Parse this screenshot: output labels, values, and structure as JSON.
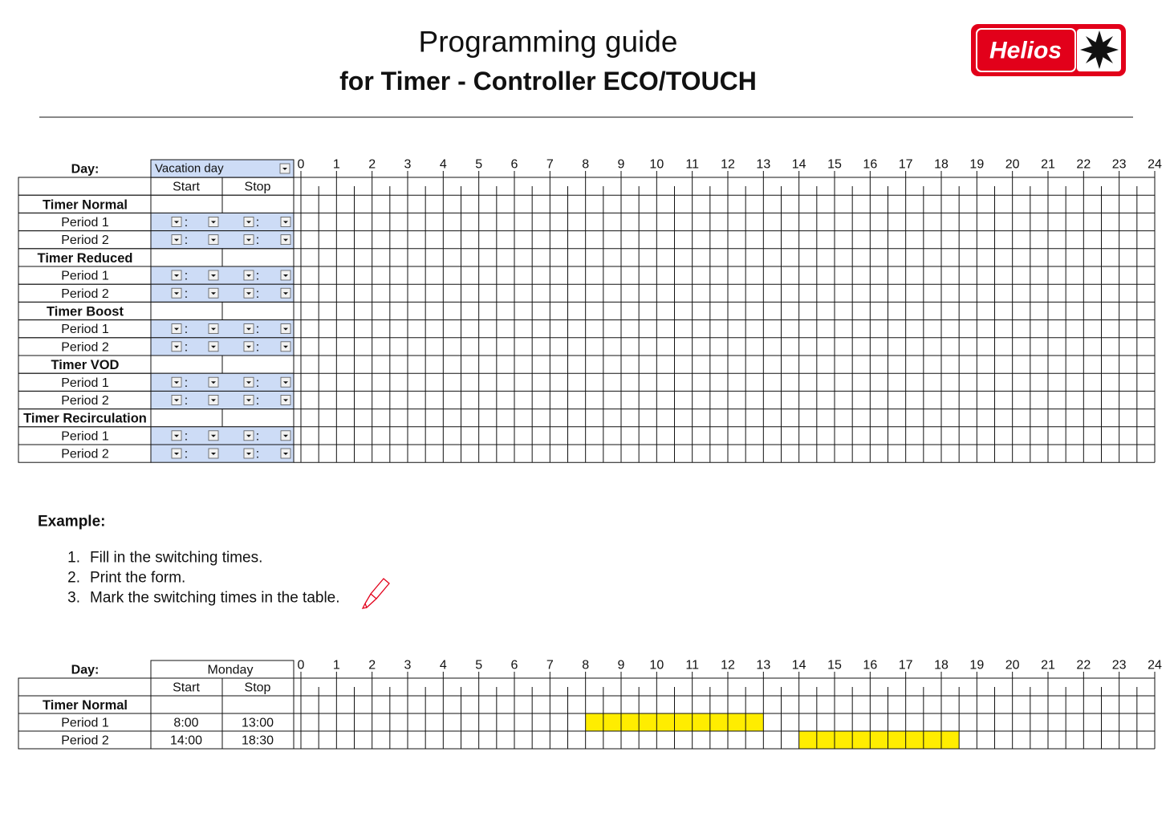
{
  "header": {
    "title": "Programming guide",
    "subtitle": "for Timer - Controller ECO/TOUCH",
    "logo": "Helios"
  },
  "form": {
    "day_label": "Day:",
    "day_value": "Vacation day",
    "columns": [
      "Start",
      "Stop"
    ],
    "separator": ":",
    "hours": [
      0,
      1,
      2,
      3,
      4,
      5,
      6,
      7,
      8,
      9,
      10,
      11,
      12,
      13,
      14,
      15,
      16,
      17,
      18,
      19,
      20,
      21,
      22,
      23,
      24
    ],
    "groups": [
      {
        "name": "Timer Normal",
        "periods": [
          "Period 1",
          "Period 2"
        ]
      },
      {
        "name": "Timer Reduced",
        "periods": [
          "Period 1",
          "Period 2"
        ]
      },
      {
        "name": "Timer Boost",
        "periods": [
          "Period 1",
          "Period 2"
        ]
      },
      {
        "name": "Timer VOD",
        "periods": [
          "Period 1",
          "Period 2"
        ]
      },
      {
        "name": "Timer Recirculation",
        "periods": [
          "Period 1",
          "Period 2"
        ]
      }
    ]
  },
  "example": {
    "heading": "Example:",
    "steps": [
      {
        "number": "1.",
        "text": "Fill in the switching times."
      },
      {
        "number": "2.",
        "text": "Print the form."
      },
      {
        "number": "3.",
        "text": "Mark the switching times in the table."
      }
    ]
  },
  "example_table": {
    "day_label": "Day:",
    "day_value": "Monday",
    "columns": [
      "Start",
      "Stop"
    ],
    "hours": [
      0,
      1,
      2,
      3,
      4,
      5,
      6,
      7,
      8,
      9,
      10,
      11,
      12,
      13,
      14,
      15,
      16,
      17,
      18,
      19,
      20,
      21,
      22,
      23,
      24
    ],
    "groups": [
      {
        "name": "Timer Normal",
        "periods": [
          {
            "name": "Period 1",
            "start": {
              "value": 8,
              "label": "8:00"
            },
            "stop": {
              "value": 13,
              "label": "13:00"
            }
          },
          {
            "name": "Period 2",
            "start": {
              "value": 14,
              "label": "14:00"
            },
            "stop": {
              "value": 18.5,
              "label": "18:30"
            }
          }
        ]
      }
    ]
  }
}
